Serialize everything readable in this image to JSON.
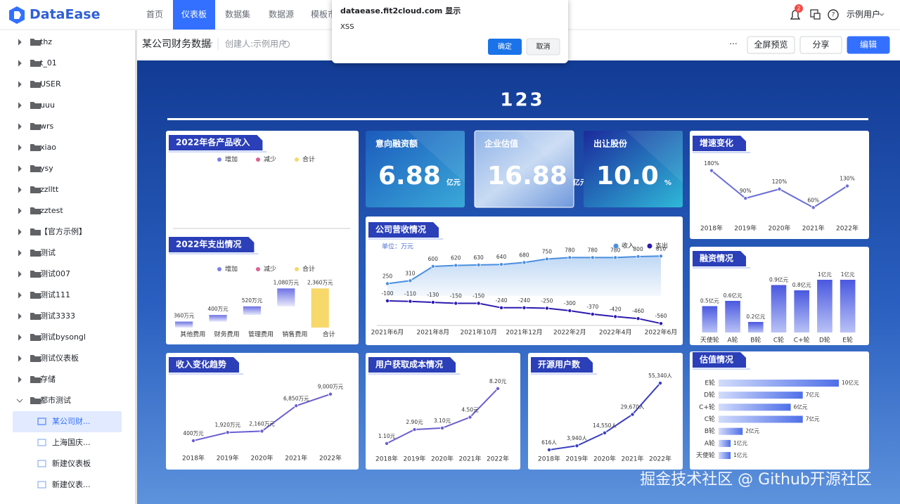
{
  "nav": {
    "brand": "DataEase",
    "tabs": [
      "首页",
      "仪表板",
      "数据集",
      "数据源",
      "模板市"
    ],
    "notification_count": "2",
    "user": "示例用户"
  },
  "sidebar": {
    "folders": [
      "thz",
      "t_01",
      "USER",
      "uuu",
      "wrs",
      "xiao",
      "ysy",
      "zzlltt",
      "zztest",
      "【官方示例】",
      "测试",
      "测试007",
      "测试111",
      "测试3333",
      "测试bysongl",
      "测试仪表板",
      "存储",
      "都市测试"
    ],
    "dashboards": [
      "某公司财...",
      "上海国庆...",
      "新建仪表板",
      "新建仪表..."
    ]
  },
  "header": {
    "title": "某公司财务数据",
    "creator": "创建人:示例用户",
    "more": "···",
    "buttons": [
      "全屏预览",
      "分享",
      "编辑"
    ]
  },
  "dialog": {
    "title": "dataease.fit2cloud.com 显示",
    "message": "XSS",
    "ok": "确定",
    "cancel": "取消"
  },
  "dashboard": {
    "title": "123",
    "kpis": [
      {
        "label": "意向融资额",
        "value": "6.88",
        "unit": "亿元"
      },
      {
        "label": "企业估值",
        "value": "16.88",
        "unit": "亿元"
      },
      {
        "label": "出让股份",
        "value": "10.0",
        "unit": "%"
      }
    ],
    "charts": [
      {
        "type": "waterfall",
        "title": "2022年各产品收入",
        "legend": [
          {
            "name": "增加",
            "color": "#7b7fe6"
          },
          {
            "name": "减少",
            "color": "#e0608f"
          },
          {
            "name": "合计",
            "color": "#f6d86b"
          }
        ]
      },
      {
        "type": "waterfall",
        "title": "2022年支出情况",
        "legend": [
          {
            "name": "增加",
            "color": "#7b7fe6"
          },
          {
            "name": "减少",
            "color": "#e0608f"
          },
          {
            "name": "合计",
            "color": "#f6d86b"
          }
        ],
        "categories": [
          "其他费用",
          "财务费用",
          "管理费用",
          "销售费用",
          "合计"
        ],
        "values": [
          360,
          400,
          520,
          1080,
          2360
        ],
        "value_labels": [
          "360万元",
          "400万元",
          "520万元",
          "1,080万元",
          "2,360万元"
        ],
        "ylim": [
          0,
          2500
        ]
      },
      {
        "type": "line",
        "title": "增速变化",
        "categories": [
          "2018年",
          "2019年",
          "2020年",
          "2021年",
          "2022年"
        ],
        "values": [
          180,
          90,
          120,
          60,
          130
        ],
        "value_labels": [
          "180%",
          "90%",
          "120%",
          "60%",
          "130%"
        ],
        "color": "#6a6fd6",
        "ylim": [
          40,
          200
        ]
      },
      {
        "type": "line",
        "title": "公司营收情况",
        "unit": "单位：万元",
        "categories": [
          "2021年6月",
          null,
          "2021年8月",
          null,
          "2021年10月",
          null,
          "2021年12月",
          null,
          "2022年2月",
          null,
          "2022年4月",
          null,
          "2022年6月"
        ],
        "series": [
          {
            "name": "收入",
            "color": "#4a8fe0",
            "values": [
              250,
              310,
              600,
              620,
              630,
              640,
              680,
              750,
              780,
              780,
              780,
              800,
              810
            ]
          },
          {
            "name": "支出",
            "color": "#2b1bb0",
            "values": [
              -100,
              -110,
              -130,
              -150,
              -150,
              -240,
              -240,
              -250,
              -300,
              -370,
              -420,
              -460,
              -560
            ]
          }
        ],
        "ylim": [
          -700,
          900
        ]
      },
      {
        "type": "bar",
        "title": "融资情况",
        "categories": [
          "天使轮",
          "A轮",
          "B轮",
          "C轮",
          "C+轮",
          "D轮",
          "E轮"
        ],
        "values": [
          0.5,
          0.6,
          0.2,
          0.9,
          0.8,
          1,
          1
        ],
        "value_labels": [
          "0.5亿元",
          "0.6亿元",
          "0.2亿元",
          "0.9亿元",
          "0.8亿元",
          "1亿元",
          "1亿元"
        ],
        "color": "#4f5fe0",
        "ylim": [
          0,
          1
        ]
      },
      {
        "type": "line",
        "title": "收入变化趋势",
        "categories": [
          "2018年",
          "2019年",
          "2020年",
          "2021年",
          "2022年"
        ],
        "values": [
          400,
          1920,
          2160,
          6850,
          9000
        ],
        "value_labels": [
          "400万元",
          "1,920万元",
          "2,160万元",
          "6,850万元",
          "9,000万元"
        ],
        "color": "#6a5fd0",
        "ylim": [
          0,
          10000
        ]
      },
      {
        "type": "line",
        "title": "用户获取成本情况",
        "categories": [
          "2018年",
          "2019年",
          "2020年",
          "2021年",
          "2022年"
        ],
        "values": [
          1.1,
          2.9,
          3.1,
          4.5,
          8.2
        ],
        "value_labels": [
          "1.10元",
          "2.90元",
          "3.10元",
          "4.50元",
          "8.20元"
        ],
        "color": "#6a5fd0",
        "ylim": [
          0,
          9
        ]
      },
      {
        "type": "line",
        "title": "开源用户数",
        "categories": [
          "2018年",
          "2019年",
          "2020年",
          "2021年",
          "2022年"
        ],
        "values": [
          616,
          3940,
          14550,
          29670,
          55340
        ],
        "value_labels": [
          "616人",
          "3,940人",
          "14,550人",
          "29,670人",
          "55,340人"
        ],
        "color": "#3a3fc0",
        "ylim": [
          0,
          60000
        ]
      },
      {
        "type": "hbar",
        "title": "估值情况",
        "categories": [
          "E轮",
          "D轮",
          "C+轮",
          "C轮",
          "B轮",
          "A轮",
          "天使轮"
        ],
        "values": [
          10,
          7,
          6,
          7,
          2,
          1,
          1
        ],
        "value_labels": [
          "10亿元",
          "7亿元",
          "6亿元",
          "7亿元",
          "2亿元",
          "1亿元",
          "1亿元"
        ],
        "color": "#4f6fe8",
        "xlim": [
          0,
          10
        ]
      }
    ]
  },
  "watermark": "掘金技术社区 @ Github开源社区"
}
